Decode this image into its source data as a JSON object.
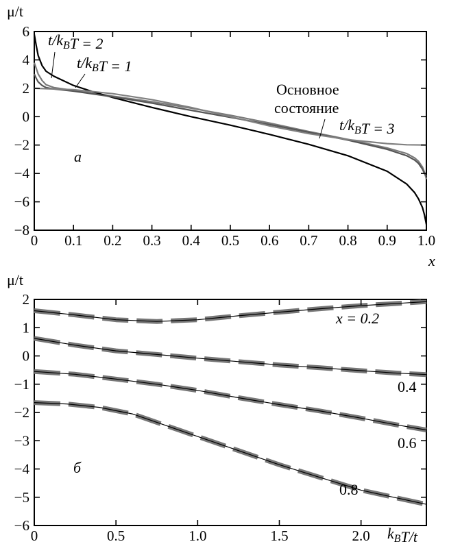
{
  "chart_data": [
    {
      "type": "line",
      "panel_letter": "а",
      "ylabel": "μ/t",
      "xlabel": "x",
      "xlim": [
        0,
        1.0
      ],
      "ylim": [
        -8,
        6
      ],
      "x_ticks": [
        "0",
        "0.1",
        "0.2",
        "0.3",
        "0.4",
        "0.5",
        "0.6",
        "0.7",
        "0.8",
        "0.9",
        "1.0"
      ],
      "y_ticks": [
        "6",
        "4",
        "2",
        "0",
        "−2",
        "−4",
        "−6",
        "−8"
      ],
      "annotations": [
        "t/k_BT = 2",
        "t/k_BT = 1",
        "Основное состояние",
        "t/k_BT = 3"
      ],
      "series": [
        {
          "name": "t/k_BT = 1",
          "color": "#7a7a7a",
          "x": [
            0,
            0.005,
            0.01,
            0.02,
            0.03,
            0.05,
            0.1,
            0.15,
            0.2,
            0.3,
            0.4,
            0.5,
            0.6,
            0.7,
            0.8,
            0.9,
            0.95,
            0.97,
            0.98,
            0.99,
            0.995,
            1.0
          ],
          "y": [
            3.8,
            3.4,
            3.0,
            2.55,
            2.25,
            2.05,
            1.85,
            1.65,
            1.45,
            1.05,
            0.6,
            0.1,
            -0.45,
            -1.05,
            -1.6,
            -2.2,
            -2.6,
            -2.9,
            -3.15,
            -3.55,
            -3.9,
            -4.4
          ]
        },
        {
          "name": "t/k_BT = 2",
          "color": "#000000",
          "x": [
            0,
            0.005,
            0.01,
            0.02,
            0.03,
            0.05,
            0.1,
            0.15,
            0.2,
            0.3,
            0.4,
            0.5,
            0.6,
            0.7,
            0.8,
            0.9,
            0.95,
            0.97,
            0.98,
            0.99,
            0.995,
            1.0
          ],
          "y": [
            5.8,
            5.0,
            4.3,
            3.6,
            3.2,
            2.85,
            2.2,
            1.75,
            1.35,
            0.65,
            0.0,
            -0.6,
            -1.25,
            -1.95,
            -2.75,
            -3.85,
            -4.75,
            -5.35,
            -5.8,
            -6.4,
            -6.9,
            -7.6
          ]
        },
        {
          "name": "t/k_BT = 3",
          "color": "#555555",
          "x": [
            0,
            0.005,
            0.01,
            0.02,
            0.03,
            0.05,
            0.1,
            0.15,
            0.2,
            0.3,
            0.4,
            0.5,
            0.6,
            0.7,
            0.8,
            0.9,
            0.95,
            0.97,
            0.98,
            0.99,
            0.995,
            1.0
          ],
          "y": [
            3.0,
            2.7,
            2.45,
            2.2,
            2.05,
            1.95,
            1.8,
            1.6,
            1.4,
            0.95,
            0.45,
            -0.05,
            -0.55,
            -1.1,
            -1.65,
            -2.3,
            -2.75,
            -3.05,
            -3.3,
            -3.7,
            -4.0,
            -4.2
          ]
        },
        {
          "name": "Основное состояние",
          "color": "#808080",
          "x": [
            0,
            0.1,
            0.2,
            0.3,
            0.4,
            0.5,
            0.6,
            0.7,
            0.8,
            0.9,
            0.95,
            1.0
          ],
          "y": [
            2.0,
            1.9,
            1.62,
            1.2,
            0.65,
            0.0,
            -0.65,
            -1.2,
            -1.62,
            -1.9,
            -1.98,
            -2.0
          ]
        }
      ]
    },
    {
      "type": "line",
      "panel_letter": "б",
      "ylabel": "μ/t",
      "xlabel": "k_BT/t",
      "xlim": [
        0,
        2.4
      ],
      "ylim": [
        -6,
        2
      ],
      "x_ticks": [
        "0",
        "0.5",
        "1.0",
        "1.5",
        "2.0"
      ],
      "y_ticks": [
        "2",
        "1",
        "0",
        "−1",
        "−2",
        "−3",
        "−4",
        "−5",
        "−6"
      ],
      "annotations": [
        "x = 0.2",
        "0.4",
        "0.6",
        "0.8"
      ],
      "series": [
        {
          "name": "x = 0.2",
          "x": [
            0,
            0.25,
            0.5,
            0.75,
            1.0,
            1.25,
            1.5,
            1.75,
            2.0,
            2.2,
            2.4
          ],
          "y": [
            1.6,
            1.45,
            1.28,
            1.22,
            1.28,
            1.42,
            1.55,
            1.67,
            1.78,
            1.85,
            1.92
          ]
        },
        {
          "name": "0.4",
          "x": [
            0,
            0.25,
            0.5,
            0.75,
            1.0,
            1.25,
            1.5,
            1.75,
            2.0,
            2.2,
            2.4
          ],
          "y": [
            0.62,
            0.38,
            0.18,
            0.05,
            -0.08,
            -0.2,
            -0.32,
            -0.42,
            -0.52,
            -0.6,
            -0.66
          ]
        },
        {
          "name": "0.6",
          "x": [
            0,
            0.25,
            0.5,
            0.75,
            1.0,
            1.25,
            1.5,
            1.75,
            2.0,
            2.2,
            2.4
          ],
          "y": [
            -0.55,
            -0.65,
            -0.82,
            -1.0,
            -1.22,
            -1.48,
            -1.72,
            -1.95,
            -2.2,
            -2.42,
            -2.62
          ]
        },
        {
          "name": "0.8",
          "x": [
            0,
            0.2,
            0.4,
            0.6,
            0.8,
            1.0,
            1.25,
            1.5,
            1.75,
            2.0,
            2.2,
            2.4
          ],
          "y": [
            -1.65,
            -1.7,
            -1.82,
            -2.05,
            -2.45,
            -2.85,
            -3.35,
            -3.85,
            -4.3,
            -4.75,
            -5.0,
            -5.25
          ]
        }
      ]
    }
  ]
}
